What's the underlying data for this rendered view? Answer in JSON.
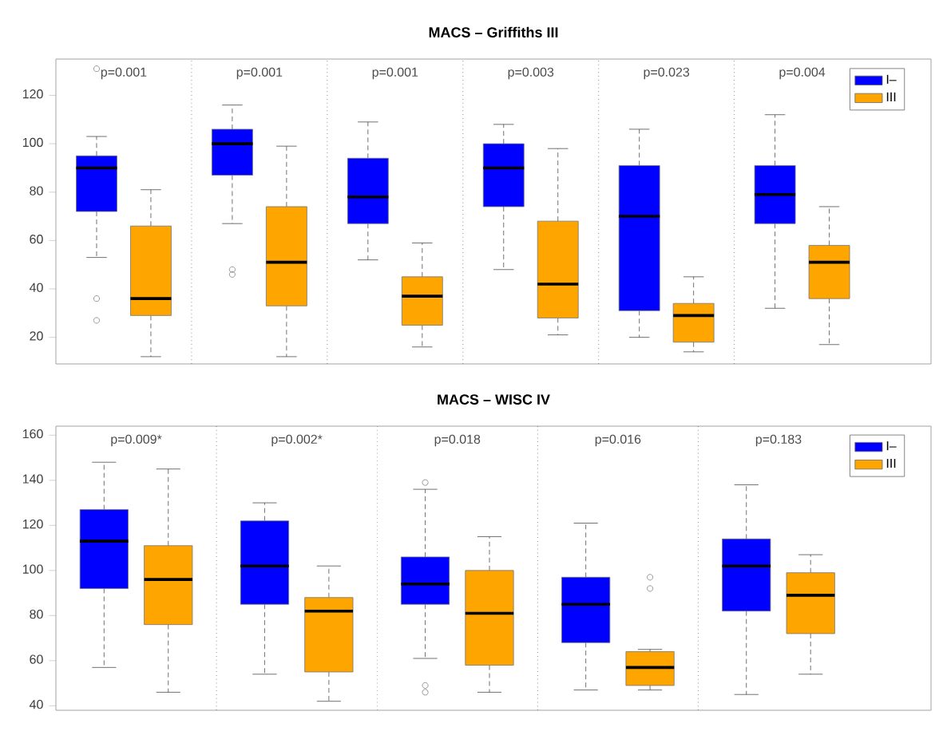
{
  "chart_data": [
    {
      "type": "box",
      "title": "MACS – Griffiths III",
      "categories": [
        "p=0.001",
        "p=0.001",
        "p=0.001",
        "p=0.003",
        "p=0.023",
        "p=0.004"
      ],
      "ylim": [
        9,
        135
      ],
      "yticks": [
        20,
        40,
        60,
        80,
        100,
        120
      ],
      "legend": "top right",
      "grid": false,
      "series": [
        {
          "name": "I–",
          "color": "#0000ff",
          "boxes": [
            {
              "low": 53,
              "q1": 72,
              "median": 90,
              "q3": 95,
              "high": 103,
              "outliers": [
                131,
                36,
                27
              ]
            },
            {
              "low": 67,
              "q1": 87,
              "median": 100,
              "q3": 106,
              "high": 116,
              "outliers": [
                48,
                46
              ]
            },
            {
              "low": 52,
              "q1": 67,
              "median": 78,
              "q3": 94,
              "high": 109
            },
            {
              "low": 48,
              "q1": 74,
              "median": 90,
              "q3": 100,
              "high": 108
            },
            {
              "low": 20,
              "q1": 31,
              "median": 70,
              "q3": 91,
              "high": 106
            },
            {
              "low": 32,
              "q1": 67,
              "median": 79,
              "q3": 91,
              "high": 112
            }
          ]
        },
        {
          "name": "III",
          "color": "#ffa500",
          "boxes": [
            {
              "low": 12,
              "q1": 29,
              "median": 36,
              "q3": 66,
              "high": 81
            },
            {
              "low": 12,
              "q1": 33,
              "median": 51,
              "q3": 74,
              "high": 99
            },
            {
              "low": 16,
              "q1": 25,
              "median": 37,
              "q3": 45,
              "high": 59
            },
            {
              "low": 21,
              "q1": 28,
              "median": 42,
              "q3": 68,
              "high": 98
            },
            {
              "low": 14,
              "q1": 18,
              "median": 29,
              "q3": 34,
              "high": 45
            },
            {
              "low": 17,
              "q1": 36,
              "median": 51,
              "q3": 58,
              "high": 74
            }
          ]
        }
      ]
    },
    {
      "type": "box",
      "title": "MACS – WISC IV",
      "categories": [
        "p=0.009*",
        "p=0.002*",
        "p=0.018",
        "p=0.016",
        "p=0.183"
      ],
      "ylim": [
        38,
        164
      ],
      "yticks": [
        40,
        60,
        80,
        100,
        120,
        140,
        160
      ],
      "legend": "top right",
      "grid": false,
      "series": [
        {
          "name": "I–",
          "color": "#0000ff",
          "boxes": [
            {
              "low": 57,
              "q1": 92,
              "median": 113,
              "q3": 127,
              "high": 148
            },
            {
              "low": 54,
              "q1": 85,
              "median": 102,
              "q3": 122,
              "high": 130
            },
            {
              "low": 61,
              "q1": 85,
              "median": 94,
              "q3": 106,
              "high": 136,
              "outliers": [
                139,
                49,
                46
              ]
            },
            {
              "low": 47,
              "q1": 68,
              "median": 85,
              "q3": 97,
              "high": 121
            },
            {
              "low": 45,
              "q1": 82,
              "median": 102,
              "q3": 114,
              "high": 138
            }
          ]
        },
        {
          "name": "III",
          "color": "#ffa500",
          "boxes": [
            {
              "low": 46,
              "q1": 76,
              "median": 96,
              "q3": 111,
              "high": 145
            },
            {
              "low": 42,
              "q1": 55,
              "median": 82,
              "q3": 88,
              "high": 102
            },
            {
              "low": 46,
              "q1": 58,
              "median": 81,
              "q3": 100,
              "high": 115
            },
            {
              "low": 47,
              "q1": 49,
              "median": 57,
              "q3": 64,
              "high": 65,
              "outliers": [
                97,
                92
              ]
            },
            {
              "low": 54,
              "q1": 72,
              "median": 89,
              "q3": 99,
              "high": 107
            }
          ]
        }
      ]
    }
  ]
}
